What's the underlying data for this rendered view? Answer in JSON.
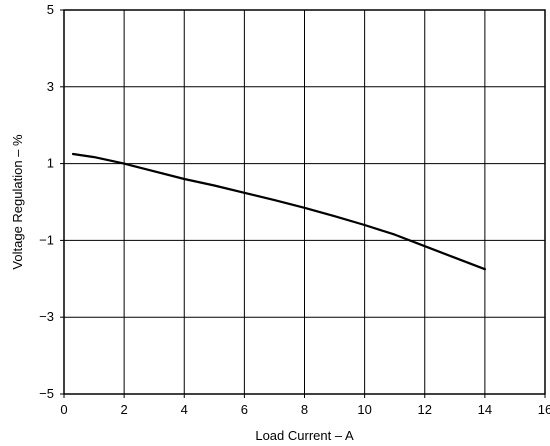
{
  "chart_data": {
    "type": "line",
    "title": "",
    "xlabel": "Load Current – A",
    "ylabel": "Voltage Regulation – %",
    "xlim": [
      0,
      16
    ],
    "ylim": [
      -5,
      5
    ],
    "x_ticks": [
      0,
      2,
      4,
      6,
      8,
      10,
      12,
      14,
      16
    ],
    "y_ticks": [
      -5,
      -3,
      -1,
      1,
      3,
      5
    ],
    "x_tick_labels": [
      "0",
      "2",
      "4",
      "6",
      "8",
      "10",
      "12",
      "14",
      "16"
    ],
    "y_tick_labels": [
      "−5",
      "−3",
      "−1",
      "1",
      "3",
      "5"
    ],
    "grid": true,
    "legend": "none",
    "series": [
      {
        "color": "#000000",
        "x": [
          0.3,
          1,
          2,
          3,
          4,
          5,
          6,
          7,
          8,
          9,
          10,
          11,
          12,
          13,
          14
        ],
        "y": [
          1.25,
          1.17,
          1.0,
          0.8,
          0.6,
          0.43,
          0.24,
          0.05,
          -0.15,
          -0.37,
          -0.6,
          -0.85,
          -1.15,
          -1.45,
          -1.75
        ]
      }
    ]
  }
}
